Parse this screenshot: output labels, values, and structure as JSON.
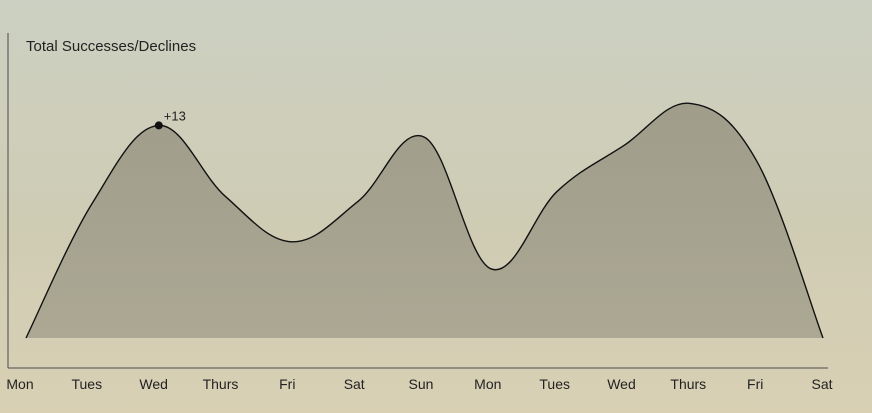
{
  "chart_data": {
    "type": "area",
    "title": "Total Successes/Declines",
    "xlabel": "",
    "ylabel": "",
    "x_labels": [
      "Mon",
      "Tues",
      "Wed",
      "Thurs",
      "Fri",
      "Sat",
      "Sun",
      "Mon",
      "Tues",
      "Wed",
      "Thurs",
      "Fri",
      "Sat"
    ],
    "ylim": [
      0,
      16
    ],
    "grid": false,
    "legend": "none",
    "series": [
      {
        "values": [
          0,
          8,
          12.6,
          8.4,
          5.7,
          8.1,
          11.9,
          4.1,
          8.7,
          11.4,
          13.9,
          10.5,
          0
        ]
      }
    ],
    "annotation": {
      "x_label": "Wed",
      "text": "+13"
    },
    "colors": {
      "area_fill": "#9c9a87",
      "line": "#111111",
      "axis": "#4a4a4a",
      "marker": "#111111"
    }
  }
}
